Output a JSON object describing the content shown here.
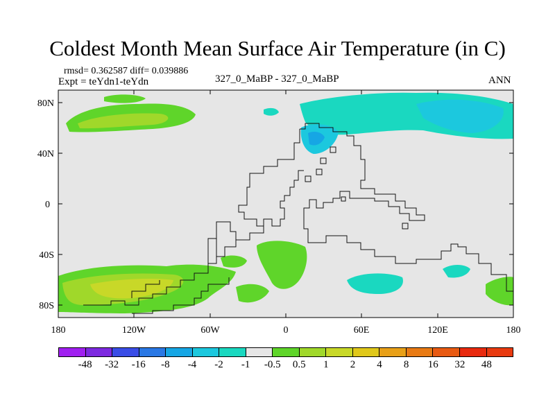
{
  "title": "Coldest Month Mean Surface Air Temperature (in C)",
  "stats_line": "rmsd= 0.362587 diff= 0.039886",
  "expt_line": "Expt = teYdn1-teYdn",
  "cases_line": "327_0_MaBP - 327_0_MaBP",
  "season": "ANN",
  "map": {
    "background": "#e6e6e6",
    "lat_ticks": [
      "80N",
      "40N",
      "0",
      "40S",
      "80S"
    ],
    "lon_ticks": [
      "180",
      "120W",
      "60W",
      "0",
      "60E",
      "120E",
      "180"
    ]
  },
  "colorbar": {
    "colors": [
      "#a020f0",
      "#7d2ae0",
      "#3a4de6",
      "#2a78e4",
      "#16a6e4",
      "#1cc8de",
      "#1ad8c0",
      "#e6e6e6",
      "#5fd52a",
      "#a0d82a",
      "#c8d828",
      "#e0c81a",
      "#e8a018",
      "#e87a14",
      "#e85a12",
      "#e82a0e"
    ],
    "labels": [
      "-48",
      "-32",
      "-16",
      "-8",
      "-4",
      "-2",
      "-1",
      "-0.5",
      "0.5",
      "1",
      "2",
      "4",
      "8",
      "16",
      "32",
      "48"
    ]
  },
  "palette": {
    "green": "#5fd52a",
    "lightgreen": "#a0d82a",
    "yellowgreen": "#c8d828",
    "cyan": "#1cc8de",
    "teal": "#1ad8c0"
  }
}
